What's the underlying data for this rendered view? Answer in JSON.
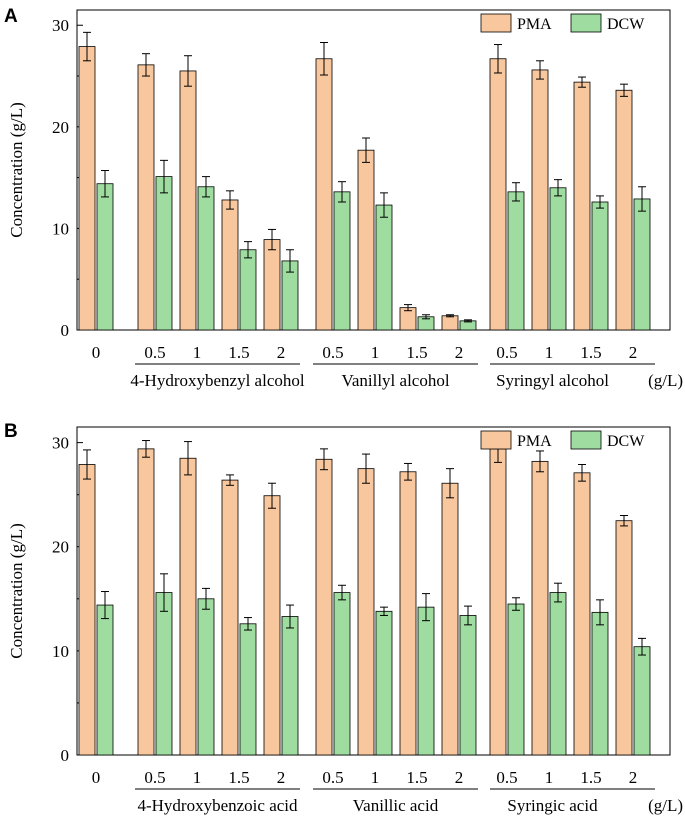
{
  "colors": {
    "pma": "#f9c79d",
    "dcw": "#9edca0",
    "stroke": "#000000"
  },
  "chart_data": [
    {
      "panel_label": "A",
      "type": "bar",
      "ylabel": "Concentration (g/L)",
      "ylim": [
        0,
        30
      ],
      "yticks": [
        "0",
        "10",
        "20",
        "30"
      ],
      "unit_label": "(g/L)",
      "legend": [
        "PMA",
        "DCW"
      ],
      "legend_position": "top-right",
      "control_label": "0",
      "groups": [
        {
          "name": "4-Hydroxybenzyl alcohol",
          "categories": [
            "0.5",
            "1",
            "1.5",
            "2"
          ]
        },
        {
          "name": "Vanillyl alcohol",
          "categories": [
            "0.5",
            "1",
            "1.5",
            "2"
          ]
        },
        {
          "name": "Syringyl alcohol",
          "categories": [
            "0.5",
            "1",
            "1.5",
            "2"
          ]
        }
      ],
      "series": [
        {
          "name": "PMA",
          "control": 27.9,
          "control_err": 1.4,
          "values": [
            [
              26.1,
              25.5,
              12.8,
              8.9
            ],
            [
              26.7,
              17.7,
              2.2,
              1.4
            ],
            [
              26.7,
              25.6,
              24.4,
              23.6
            ]
          ],
          "errors": [
            [
              1.1,
              1.5,
              0.9,
              1.0
            ],
            [
              1.6,
              1.2,
              0.3,
              0.1
            ],
            [
              1.4,
              0.9,
              0.5,
              0.6
            ]
          ]
        },
        {
          "name": "DCW",
          "control": 14.4,
          "control_err": 1.3,
          "values": [
            [
              15.1,
              14.1,
              7.9,
              6.8
            ],
            [
              13.6,
              12.3,
              1.3,
              0.9
            ],
            [
              13.6,
              14.0,
              12.6,
              12.9
            ]
          ],
          "errors": [
            [
              1.6,
              1.0,
              0.8,
              1.1
            ],
            [
              1.0,
              1.2,
              0.2,
              0.1
            ],
            [
              0.9,
              0.8,
              0.6,
              1.2
            ]
          ]
        }
      ]
    },
    {
      "panel_label": "B",
      "type": "bar",
      "ylabel": "Concentration (g/L)",
      "ylim": [
        0,
        30
      ],
      "yticks": [
        "0",
        "10",
        "20",
        "30"
      ],
      "unit_label": "(g/L)",
      "legend": [
        "PMA",
        "DCW"
      ],
      "legend_position": "top-right",
      "control_label": "0",
      "groups": [
        {
          "name": "4-Hydroxybenzoic acid",
          "categories": [
            "0.5",
            "1",
            "1.5",
            "2"
          ]
        },
        {
          "name": "Vanillic acid",
          "categories": [
            "0.5",
            "1",
            "1.5",
            "2"
          ]
        },
        {
          "name": "Syringic acid",
          "categories": [
            "0.5",
            "1",
            "1.5",
            "2"
          ]
        }
      ],
      "series": [
        {
          "name": "PMA",
          "control": 27.9,
          "control_err": 1.4,
          "values": [
            [
              29.4,
              28.5,
              26.4,
              24.9
            ],
            [
              28.4,
              27.5,
              27.2,
              26.1
            ],
            [
              29.4,
              28.2,
              27.1,
              22.5
            ]
          ],
          "errors": [
            [
              0.8,
              1.6,
              0.5,
              1.2
            ],
            [
              1.0,
              1.4,
              0.8,
              1.4
            ],
            [
              1.3,
              1.0,
              0.8,
              0.5
            ]
          ]
        },
        {
          "name": "DCW",
          "control": 14.4,
          "control_err": 1.3,
          "values": [
            [
              15.6,
              15.0,
              12.6,
              13.3
            ],
            [
              15.6,
              13.8,
              14.2,
              13.4
            ],
            [
              14.5,
              15.6,
              13.7,
              10.4
            ]
          ],
          "errors": [
            [
              1.8,
              1.0,
              0.6,
              1.1
            ],
            [
              0.7,
              0.4,
              1.3,
              0.9
            ],
            [
              0.6,
              0.9,
              1.2,
              0.8
            ]
          ]
        }
      ]
    }
  ]
}
